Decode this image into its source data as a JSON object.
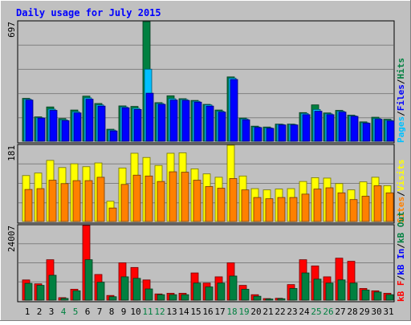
{
  "chart_data": {
    "type": "bar",
    "title": "Daily usage for July 2015",
    "categories": [
      "1",
      "2",
      "3",
      "4",
      "5",
      "6",
      "7",
      "8",
      "9",
      "10",
      "11",
      "12",
      "13",
      "14",
      "15",
      "16",
      "17",
      "18",
      "19",
      "20",
      "21",
      "22",
      "23",
      "24",
      "25",
      "26",
      "27",
      "28",
      "29",
      "30",
      "31"
    ],
    "weekend_days": [
      "4",
      "5",
      "11",
      "12",
      "18",
      "19",
      "25",
      "26"
    ],
    "panels": [
      {
        "name": "pages-files-hits",
        "max_label": "697",
        "ylim": [
          0,
          697
        ],
        "legend": [
          "Pages",
          "/",
          "Files",
          "/",
          "Hits"
        ],
        "series": [
          {
            "name": "Hits",
            "color": "#008040",
            "values": [
              250,
              142,
              200,
              132,
              182,
              263,
              220,
              70,
              206,
              203,
              697,
              225,
              265,
              248,
              238,
              215,
              182,
              375,
              135,
              88,
              83,
              100,
              100,
              167,
              212,
              165,
              180,
              152,
              113,
              140,
              128
            ]
          },
          {
            "name": "Files",
            "color": "#00c0ff",
            "values": [
              245,
              137,
              187,
              125,
              172,
              253,
              212,
              65,
              200,
              192,
              420,
              220,
              248,
              243,
              233,
              212,
              175,
              368,
              130,
              83,
              78,
              98,
              98,
              162,
              185,
              160,
              175,
              148,
              108,
              133,
              122
            ]
          },
          {
            "name": "Pages",
            "color": "#0000ff",
            "values": [
              240,
              135,
              180,
              120,
              165,
              245,
              205,
              60,
              195,
              185,
              280,
              215,
              240,
              238,
              228,
              205,
              170,
              360,
              125,
              80,
              75,
              95,
              95,
              155,
              175,
              155,
              170,
              145,
              105,
              128,
              118
            ]
          }
        ]
      },
      {
        "name": "visits-sites",
        "max_label": "181",
        "ylim": [
          0,
          181
        ],
        "legend": [
          "Sites",
          "/",
          "Visits"
        ],
        "series": [
          {
            "name": "Visits",
            "color": "#ffff00",
            "values": [
              109,
              115,
              145,
              128,
              137,
              130,
              139,
              48,
              127,
              162,
              152,
              133,
              162,
              163,
              125,
              113,
              105,
              181,
              108,
              78,
              75,
              77,
              78,
              95,
              104,
              103,
              90,
              75,
              94,
              105,
              85
            ]
          },
          {
            "name": "Sites",
            "color": "#ff8000",
            "values": [
              76,
              78,
              98,
              90,
              97,
              97,
              105,
              32,
              88,
              110,
              108,
              95,
              118,
              117,
              98,
              83,
              79,
              102,
              75,
              57,
              54,
              57,
              57,
              65,
              77,
              80,
              68,
              52,
              60,
              85,
              68
            ]
          }
        ]
      },
      {
        "name": "kb-f-in-out",
        "max_label": "24007",
        "ylim": [
          0,
          24007
        ],
        "legend": [
          "kB F",
          "/",
          "kB In",
          "/",
          "kB Out"
        ],
        "series": [
          {
            "name": "kB F",
            "color": "#ff0000",
            "values": [
              6500,
              5250,
              13000,
              800,
              3500,
              24007,
              8250,
              1500,
              12000,
              10500,
              6500,
              2000,
              2200,
              2200,
              8750,
              5500,
              7500,
              12000,
              4750,
              1750,
              500,
              600,
              5000,
              13000,
              11000,
              7500,
              13500,
              12500,
              3750,
              3000,
              2200
            ]
          },
          {
            "name": "kB Out",
            "color": "#008040",
            "values": [
              5400,
              4750,
              8000,
              550,
              3000,
              13000,
              5750,
              1100,
              7500,
              7000,
              3600,
              1750,
              1750,
              1750,
              5500,
              4250,
              5500,
              7750,
              3500,
              1250,
              350,
              450,
              3750,
              8750,
              6750,
              5500,
              6500,
              5500,
              3250,
              2600,
              1750
            ]
          }
        ]
      }
    ]
  }
}
